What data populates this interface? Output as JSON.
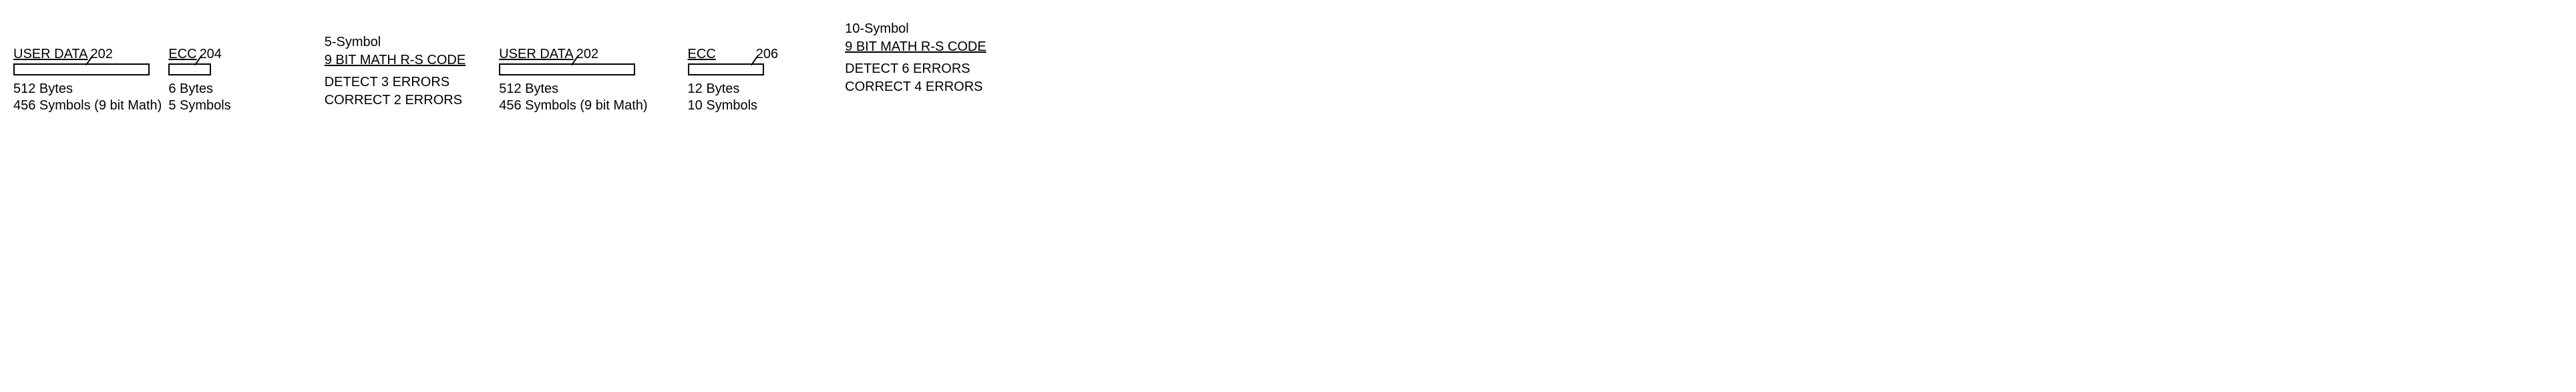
{
  "block1": {
    "label": "USER DATA",
    "ref": "202",
    "rect_width": 200,
    "bytes": "512 Bytes",
    "symbols": "456 Symbols (9 bit Math)"
  },
  "block2": {
    "label": "ECC",
    "ref": "204",
    "rect_width": 60,
    "bytes": "6 Bytes",
    "symbols": "5 Symbols"
  },
  "spec1": {
    "title1": "5-Symbol",
    "title2": "9 BIT MATH R-S CODE",
    "line1": "DETECT 3 ERRORS",
    "line2": "CORRECT 2 ERRORS"
  },
  "block3": {
    "label": "USER DATA",
    "ref": "202",
    "rect_width": 200,
    "bytes": "512 Bytes",
    "symbols": "456 Symbols (9 bit Math)"
  },
  "block4": {
    "label": "ECC",
    "ref": "206",
    "rect_width": 110,
    "bytes": "12 Bytes",
    "symbols": "10 Symbols"
  },
  "spec2": {
    "title1": "10-Symbol",
    "title2": "9 BIT MATH R-S CODE",
    "line1": "DETECT 6 ERRORS",
    "line2": "CORRECT 4 ERRORS"
  },
  "colors": {
    "stroke": "#000000",
    "background": "#ffffff"
  }
}
